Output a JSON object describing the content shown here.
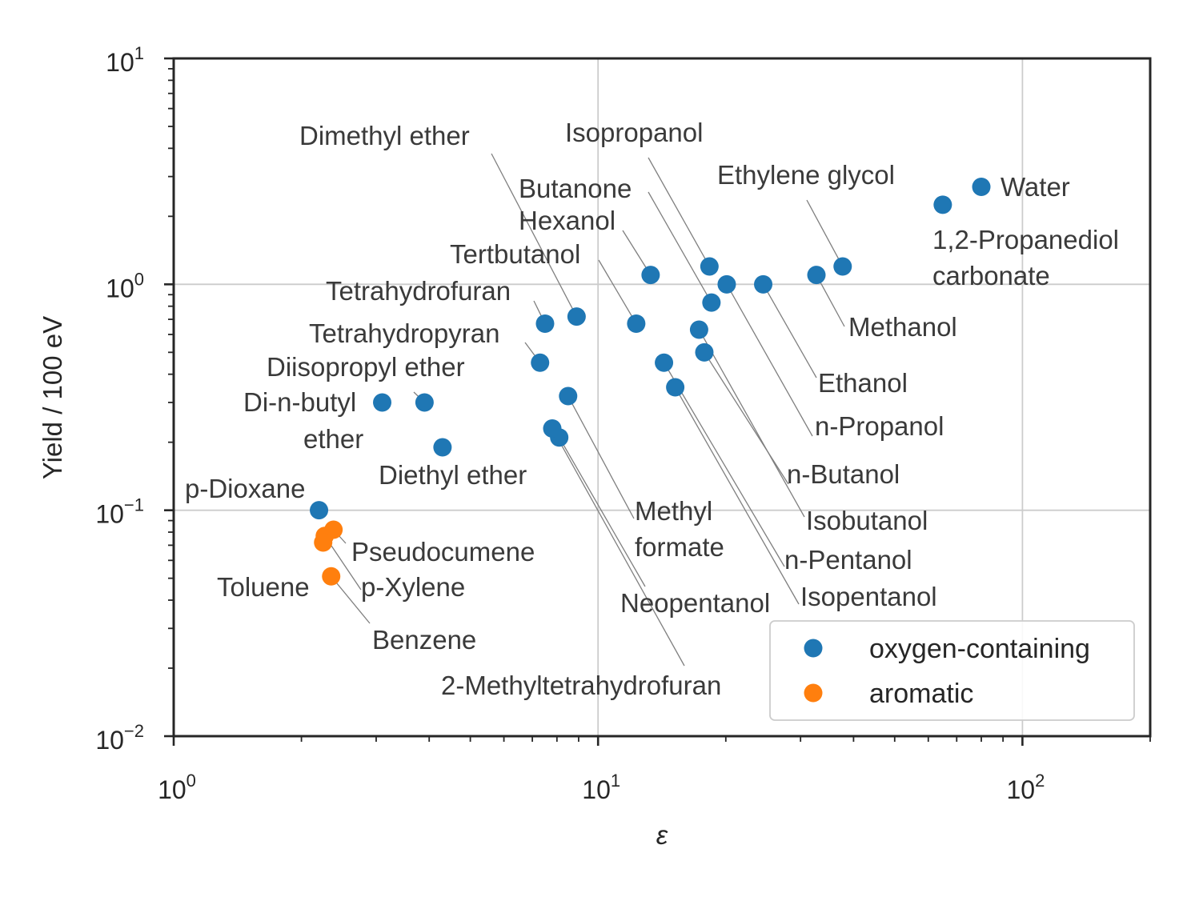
{
  "chart_data": {
    "type": "scatter",
    "xscale": "log",
    "yscale": "log",
    "xlim": [
      1,
      200
    ],
    "ylim": [
      0.01,
      10
    ],
    "xlabel": "ε",
    "ylabel": "Yield / 100 eV",
    "grid": true,
    "legend_position": "lower-right",
    "x_ticks": [
      {
        "base": "10",
        "exp": "0",
        "value": 1
      },
      {
        "base": "10",
        "exp": "1",
        "value": 10
      },
      {
        "base": "10",
        "exp": "2",
        "value": 100
      }
    ],
    "y_ticks": [
      {
        "base": "10",
        "exp": "−2",
        "value": 0.01
      },
      {
        "base": "10",
        "exp": "−1",
        "value": 0.1
      },
      {
        "base": "10",
        "exp": "0",
        "value": 1
      },
      {
        "base": "10",
        "exp": "1",
        "value": 10
      }
    ],
    "series": [
      {
        "name": "oxygen-containing",
        "color": "#1f77b4",
        "points": [
          {
            "label": "Water",
            "x": 80.0,
            "y": 2.7
          },
          {
            "label": "1,2-Propanediol carbonate",
            "x": 64.9,
            "y": 2.25
          },
          {
            "label": "Ethylene glycol",
            "x": 37.7,
            "y": 1.2
          },
          {
            "label": "Methanol",
            "x": 32.7,
            "y": 1.1
          },
          {
            "label": "Ethanol",
            "x": 24.5,
            "y": 1.0
          },
          {
            "label": "n-Propanol",
            "x": 20.1,
            "y": 1.0
          },
          {
            "label": "Isopropanol",
            "x": 18.3,
            "y": 1.2
          },
          {
            "label": "Butanone",
            "x": 18.5,
            "y": 0.83
          },
          {
            "label": "n-Butanol",
            "x": 17.8,
            "y": 0.5
          },
          {
            "label": "Isobutanol",
            "x": 17.3,
            "y": 0.63
          },
          {
            "label": "n-Pentanol",
            "x": 14.3,
            "y": 0.45
          },
          {
            "label": "Isopentanol",
            "x": 15.2,
            "y": 0.35
          },
          {
            "label": "Hexanol",
            "x": 13.3,
            "y": 1.1
          },
          {
            "label": "Tertbutanol",
            "x": 12.3,
            "y": 0.67
          },
          {
            "label": "Dimethyl ether",
            "x": 8.9,
            "y": 0.72
          },
          {
            "label": "Methyl formate",
            "x": 8.5,
            "y": 0.32
          },
          {
            "label": "Neopentanol",
            "x": 8.1,
            "y": 0.21
          },
          {
            "label": "2-Methyltetrahydrofuran",
            "x": 7.8,
            "y": 0.23
          },
          {
            "label": "Tetrahydrofuran",
            "x": 7.5,
            "y": 0.67
          },
          {
            "label": "Tetrahydropyran",
            "x": 7.3,
            "y": 0.45
          },
          {
            "label": "Diethyl ether",
            "x": 4.3,
            "y": 0.19
          },
          {
            "label": "Diisopropyl ether",
            "x": 3.9,
            "y": 0.3
          },
          {
            "label": "Di-n-butyl ether",
            "x": 3.1,
            "y": 0.3
          },
          {
            "label": "p-Dioxane",
            "x": 2.2,
            "y": 0.1
          }
        ]
      },
      {
        "name": "aromatic",
        "color": "#ff7f0e",
        "points": [
          {
            "label": "Pseudocumene",
            "x": 2.38,
            "y": 0.082
          },
          {
            "label": "p-Xylene",
            "x": 2.27,
            "y": 0.077
          },
          {
            "label": "Toluene",
            "x": 2.25,
            "y": 0.072
          },
          {
            "label": "Benzene",
            "x": 2.35,
            "y": 0.051
          }
        ]
      }
    ],
    "annotations": [
      {
        "text": "Water",
        "point": "Water"
      },
      {
        "text": "1,2-Propanediol",
        "point": "1,2-Propanediol carbonate"
      },
      {
        "text": "carbonate",
        "point": null
      },
      {
        "text": "Ethylene glycol",
        "point": "Ethylene glycol"
      },
      {
        "text": "Methanol",
        "point": "Methanol"
      },
      {
        "text": "Ethanol",
        "point": "Ethanol"
      },
      {
        "text": "n-Propanol",
        "point": "n-Propanol"
      },
      {
        "text": "Isopropanol",
        "point": "Isopropanol"
      },
      {
        "text": "Butanone",
        "point": "Butanone"
      },
      {
        "text": "n-Butanol",
        "point": "n-Butanol"
      },
      {
        "text": "Isobutanol",
        "point": "Isobutanol"
      },
      {
        "text": "n-Pentanol",
        "point": "n-Pentanol"
      },
      {
        "text": "Isopentanol",
        "point": "Isopentanol"
      },
      {
        "text": "Hexanol",
        "point": "Hexanol"
      },
      {
        "text": "Tertbutanol",
        "point": "Tertbutanol"
      },
      {
        "text": "Dimethyl ether",
        "point": "Dimethyl ether"
      },
      {
        "text": "Methyl",
        "point": "Methyl formate"
      },
      {
        "text": "formate",
        "point": null
      },
      {
        "text": "Neopentanol",
        "point": "Neopentanol"
      },
      {
        "text": "2-Methyltetrahydrofuran",
        "point": "2-Methyltetrahydrofuran"
      },
      {
        "text": "Tetrahydrofuran",
        "point": "Tetrahydrofuran"
      },
      {
        "text": "Tetrahydropyran",
        "point": "Tetrahydropyran"
      },
      {
        "text": "Diethyl ether",
        "point": "Diethyl ether"
      },
      {
        "text": "Diisopropyl ether",
        "point": "Diisopropyl ether"
      },
      {
        "text": "Di-n-butyl",
        "point": "Di-n-butyl ether"
      },
      {
        "text": "ether",
        "point": null
      },
      {
        "text": "p-Dioxane",
        "point": "p-Dioxane"
      },
      {
        "text": "Pseudocumene",
        "point": "Pseudocumene"
      },
      {
        "text": "p-Xylene",
        "point": "p-Xylene"
      },
      {
        "text": "Toluene",
        "point": "Toluene"
      },
      {
        "text": "Benzene",
        "point": "Benzene"
      }
    ]
  }
}
